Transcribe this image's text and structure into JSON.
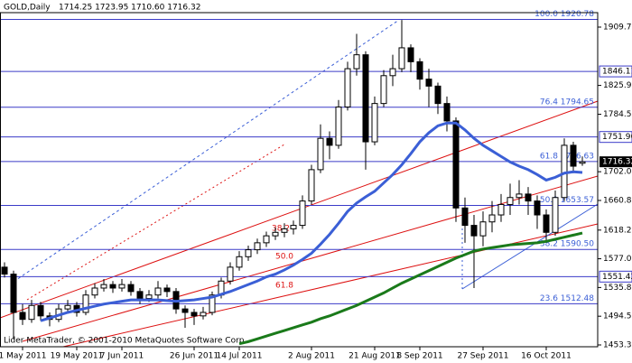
{
  "chart_data": {
    "type": "candlestick",
    "title": "GOLD,Daily",
    "quote_text": "1714.25 1723.95 1710.60 1716.32",
    "footer": "Lider MetaTrader, © 2001-2010 MetaQuotes Software Corp.",
    "categories": [
      null,
      null,
      "1 May 2011",
      null,
      null,
      null,
      null,
      null,
      "19 May 2011",
      null,
      null,
      null,
      null,
      "7 Jun 2011",
      null,
      null,
      null,
      null,
      null,
      null,
      null,
      "26 Jun 2011",
      null,
      null,
      null,
      null,
      "14 Jul 2011",
      null,
      null,
      null,
      null,
      null,
      null,
      null,
      "2 Aug 2011",
      null,
      null,
      null,
      null,
      null,
      null,
      "21 Aug 2011",
      null,
      null,
      null,
      null,
      "8 Sep 2011",
      null,
      null,
      null,
      null,
      null,
      null,
      "27 Sep 2011",
      null,
      null,
      null,
      null,
      null,
      null,
      "16 Oct 2011",
      null,
      null,
      null,
      null
    ],
    "open": [
      1565,
      1555,
      1500,
      1490,
      1510,
      1495,
      1490,
      1505,
      1510,
      1500,
      1525,
      1535,
      1540,
      1535,
      1540,
      1530,
      1520,
      1525,
      1535,
      1530,
      1505,
      1500,
      1495,
      1500,
      1525,
      1545,
      1565,
      1580,
      1590,
      1600,
      1610,
      1615,
      1620,
      1625,
      1660,
      1705,
      1750,
      1740,
      1795,
      1850,
      1870,
      1745,
      1800,
      1840,
      1850,
      1880,
      1860,
      1835,
      1825,
      1800,
      1775,
      1650,
      1625,
      1610,
      1630,
      1640,
      1655,
      1665,
      1670,
      1660,
      1640,
      1615,
      1665,
      1740,
      1714.25
    ],
    "high": [
      1572,
      1560,
      1512,
      1518,
      1515,
      1500,
      1512,
      1518,
      1515,
      1532,
      1542,
      1548,
      1545,
      1548,
      1545,
      1535,
      1532,
      1545,
      1540,
      1535,
      1510,
      1505,
      1508,
      1530,
      1550,
      1572,
      1588,
      1596,
      1606,
      1616,
      1622,
      1628,
      1632,
      1668,
      1712,
      1770,
      1760,
      1805,
      1860,
      1900,
      1875,
      1810,
      1848,
      1870,
      1920,
      1885,
      1865,
      1850,
      1830,
      1810,
      1780,
      1665,
      1640,
      1645,
      1660,
      1670,
      1685,
      1690,
      1680,
      1668,
      1648,
      1675,
      1750,
      1745,
      1723.95
    ],
    "low": [
      1550,
      1462,
      1482,
      1485,
      1488,
      1480,
      1486,
      1498,
      1494,
      1496,
      1520,
      1530,
      1528,
      1530,
      1524,
      1512,
      1515,
      1520,
      1522,
      1498,
      1478,
      1482,
      1490,
      1496,
      1520,
      1540,
      1560,
      1574,
      1584,
      1594,
      1604,
      1608,
      1612,
      1620,
      1655,
      1700,
      1720,
      1735,
      1790,
      1840,
      1705,
      1740,
      1795,
      1825,
      1845,
      1845,
      1820,
      1795,
      1785,
      1760,
      1630,
      1600,
      1535,
      1595,
      1615,
      1630,
      1640,
      1655,
      1640,
      1620,
      1600,
      1610,
      1660,
      1700,
      1710.6
    ],
    "close": [
      1555,
      1500,
      1490,
      1510,
      1495,
      1490,
      1505,
      1510,
      1500,
      1525,
      1535,
      1540,
      1535,
      1540,
      1530,
      1520,
      1525,
      1535,
      1530,
      1505,
      1500,
      1495,
      1500,
      1525,
      1545,
      1565,
      1580,
      1590,
      1600,
      1610,
      1615,
      1620,
      1625,
      1660,
      1705,
      1750,
      1740,
      1795,
      1850,
      1870,
      1745,
      1800,
      1840,
      1850,
      1880,
      1860,
      1835,
      1825,
      1800,
      1775,
      1650,
      1625,
      1610,
      1630,
      1640,
      1655,
      1665,
      1670,
      1660,
      1640,
      1615,
      1665,
      1740,
      1710,
      1716.32
    ],
    "up_color": "#ffffff",
    "down_color": "#000000",
    "series": [
      {
        "color": "#3b5fd6",
        "values": [
          null,
          null,
          null,
          null,
          1488,
          1492,
          1496,
          1500,
          1503,
          1506,
          1509,
          1512,
          1514,
          1516,
          1518,
          1518,
          1518,
          1518,
          1517,
          1516,
          1517,
          1518,
          1520,
          1522,
          1526,
          1530,
          1535,
          1540,
          1545,
          1551,
          1555,
          1561,
          1568,
          1576,
          1585,
          1598,
          1612,
          1628,
          1645,
          1657,
          1666,
          1674,
          1686,
          1698,
          1712,
          1728,
          1745,
          1758,
          1768,
          1772,
          1772,
          1762,
          1750,
          1740,
          1732,
          1724,
          1716,
          1710,
          1705,
          1698,
          1690,
          1694,
          1700,
          1702,
          1701
        ]
      },
      {
        "color": "#1a7a1a",
        "values": [
          null,
          null,
          null,
          null,
          null,
          null,
          null,
          null,
          null,
          null,
          null,
          null,
          null,
          null,
          null,
          null,
          null,
          null,
          null,
          null,
          null,
          null,
          null,
          null,
          null,
          null,
          1455,
          1458,
          1462,
          1466,
          1470,
          1474,
          1478,
          1482,
          1486,
          1491,
          1495,
          1500,
          1505,
          1510,
          1516,
          1522,
          1528,
          1535,
          1542,
          1548,
          1554,
          1560,
          1566,
          1572,
          1578,
          1583,
          1588,
          1591,
          1593,
          1595,
          1597,
          1598,
          1599,
          1600,
          1602,
          1605,
          1608,
          1611,
          1614
        ]
      }
    ],
    "ylim": [
      1450.7,
      1930.5
    ],
    "yticks": [
      1909.75,
      1825.98,
      1784.55,
      1702.05,
      {
        "value": 1660.8,
        "label": "1660.80"
      },
      1618.23,
      1577.05,
      {
        "value": 1535.8,
        "label": "1535.80"
      },
      1494.55,
      {
        "value": 1453.3,
        "label": "1453.30"
      }
    ],
    "fib_levels": [
      {
        "label": "100.0 1920.78",
        "value": 1920.78
      },
      {
        "label": "76.4 1794.65",
        "value": 1794.65
      },
      {
        "label": "61.8 1716.63",
        "value": 1716.63
      },
      {
        "label": "50.0 1653.57",
        "value": 1653.57
      },
      {
        "label": "38.2 1590.50",
        "value": 1590.5
      },
      {
        "label": "23.6 1512.48",
        "value": 1512.48
      }
    ],
    "price_levels": [
      1846.11,
      1751.96,
      1551.42
    ],
    "fan_labels": [
      "38.2",
      "50.0",
      "61.8"
    ]
  }
}
